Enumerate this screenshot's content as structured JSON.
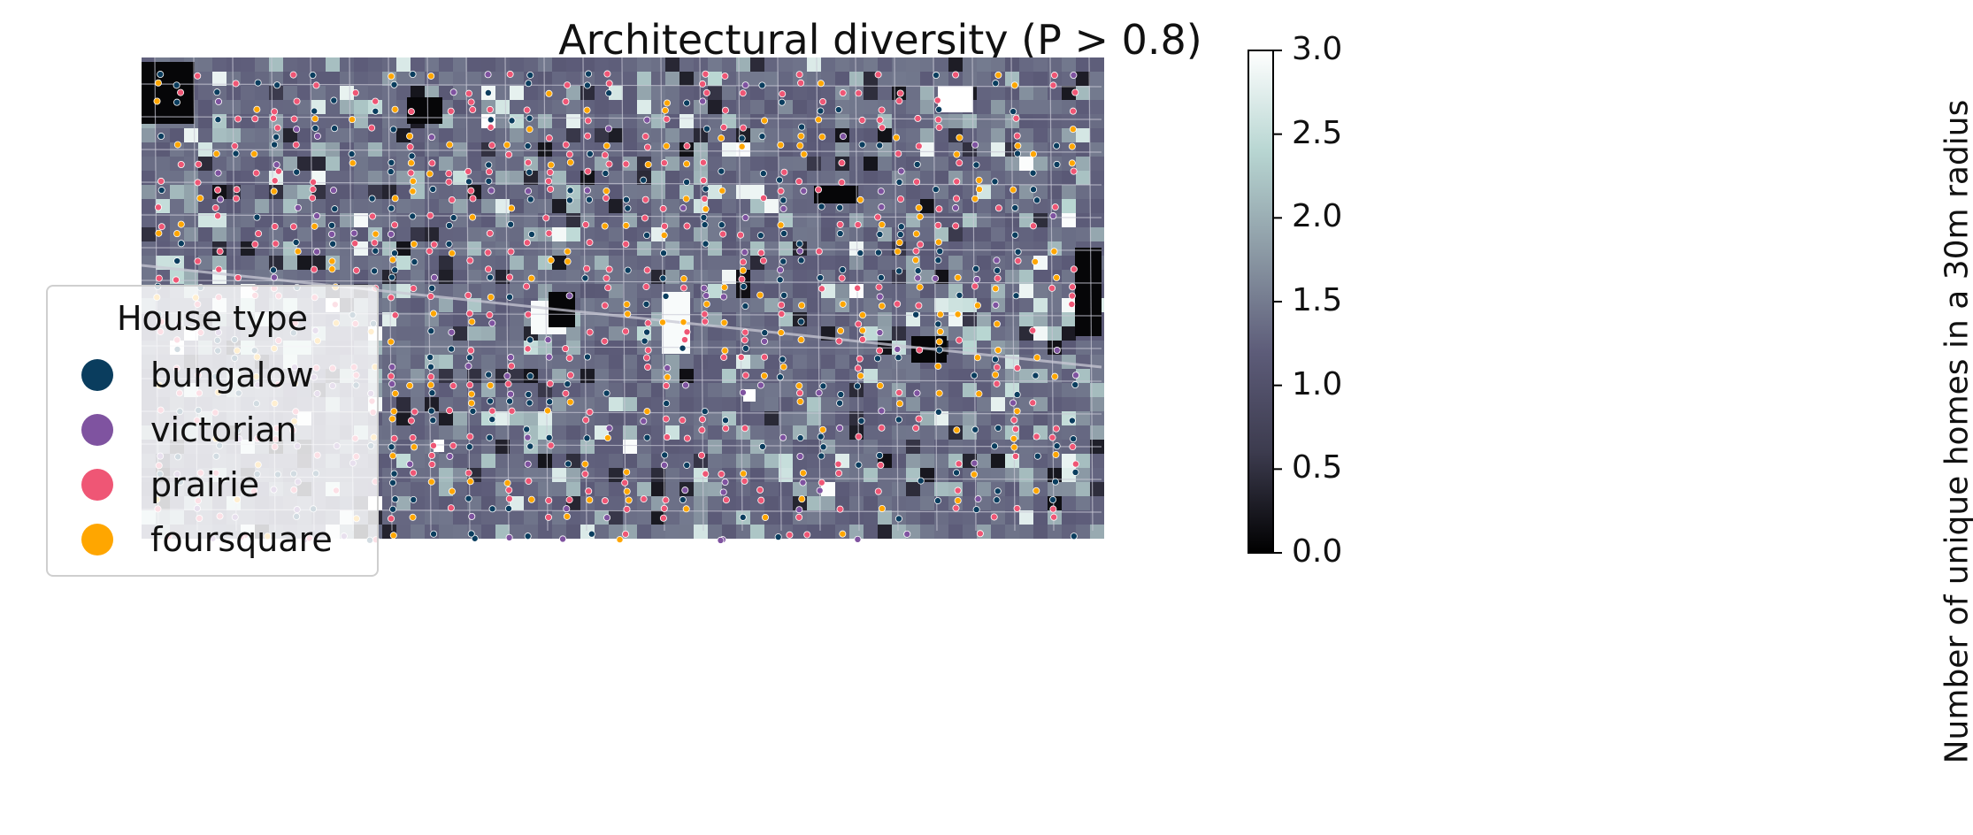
{
  "title": "Architectural diversity (P > 0.8)",
  "legend": {
    "title": "House type",
    "items": [
      {
        "label": "bungalow",
        "color": "#0a3d5e"
      },
      {
        "label": "victorian",
        "color": "#7f53a0"
      },
      {
        "label": "prairie",
        "color": "#ef5675"
      },
      {
        "label": "foursquare",
        "color": "#ffa600"
      }
    ]
  },
  "colorbar": {
    "label": "Number of unique homes in a 30m radius",
    "ticks": [
      "0.0",
      "0.5",
      "1.0",
      "1.5",
      "2.0",
      "2.5",
      "3.0"
    ],
    "min": 0,
    "max": 3,
    "colormap": [
      "#000000",
      "#3c3b4e",
      "#5d5c79",
      "#8c9aa5",
      "#b8d6d2",
      "#ffffff"
    ]
  },
  "map": {
    "background_base": "#58586f",
    "street_color": "#c8c8d4"
  }
}
